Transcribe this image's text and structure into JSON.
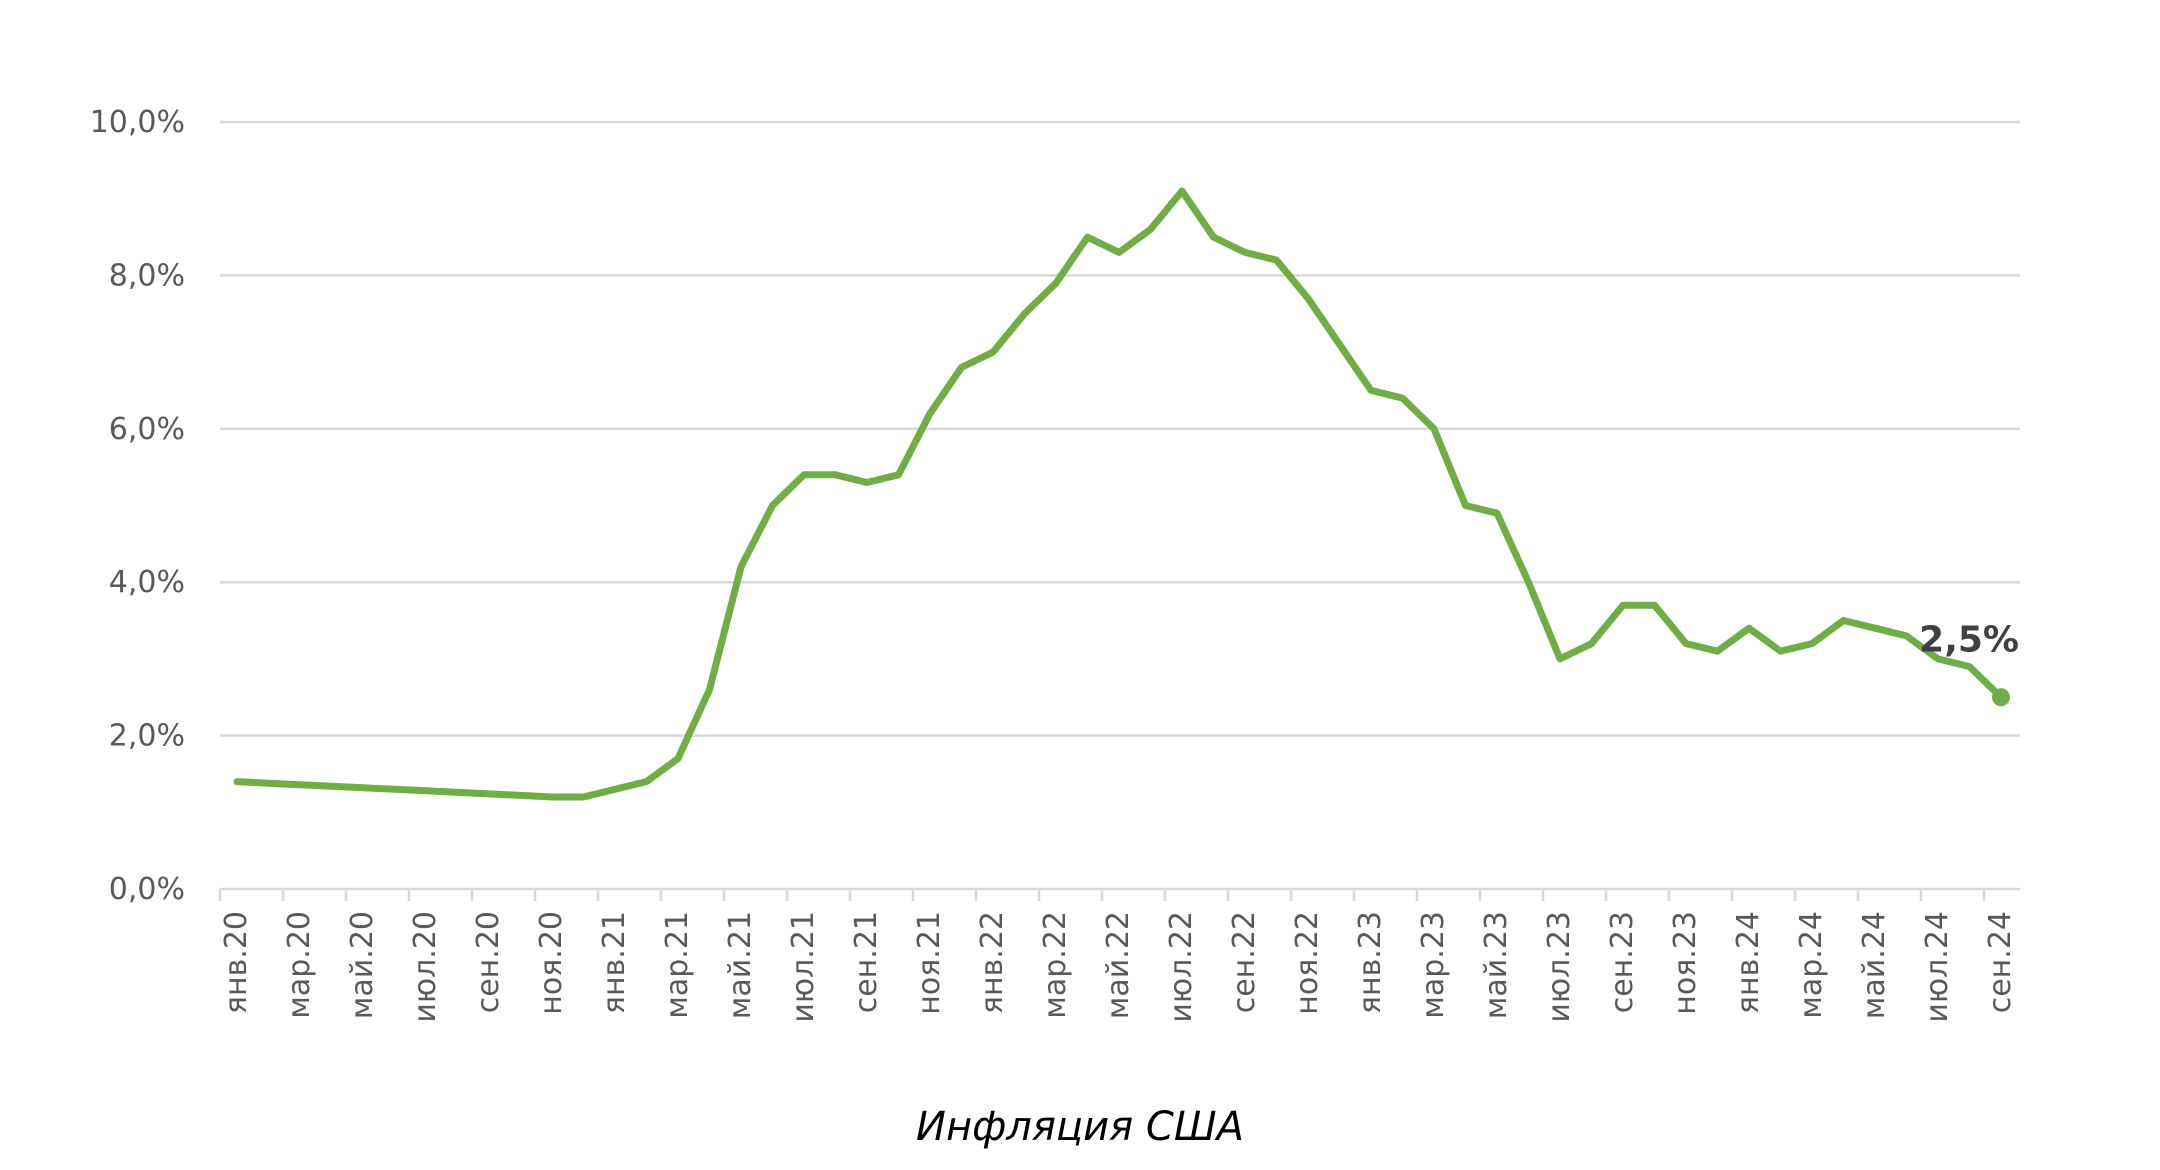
{
  "chart_data": {
    "type": "line",
    "title": "Инфляция США",
    "xlabel": "",
    "ylabel": "",
    "ylim": [
      0,
      10
    ],
    "y_ticks": [
      "0,0%",
      "2,0%",
      "4,0%",
      "6,0%",
      "8,0%",
      "10,0%"
    ],
    "y_tick_values": [
      0,
      2,
      4,
      6,
      8,
      10
    ],
    "grid": true,
    "legend": "none",
    "x_tick_labels": [
      "янв.20",
      "мар.20",
      "май.20",
      "июл.20",
      "сен.20",
      "ноя.20",
      "янв.21",
      "мар.21",
      "май.21",
      "июл.21",
      "сен.21",
      "ноя.21",
      "янв.22",
      "мар.22",
      "май.22",
      "июл.22",
      "сен.22",
      "ноя.22",
      "янв.23",
      "мар.23",
      "май.23",
      "июл.23",
      "сен.23",
      "ноя.23",
      "янв.24",
      "мар.24",
      "май.24",
      "июл.24",
      "сен.24"
    ],
    "series": [
      {
        "color": "#70ad47",
        "x": [
          "янв.20",
          "фев.20",
          "мар.20",
          "апр.20",
          "май.20",
          "июн.20",
          "июл.20",
          "авг.20",
          "сен.20",
          "окт.20",
          "ноя.20",
          "дек.20",
          "янв.21",
          "фев.21",
          "мар.21",
          "апр.21",
          "май.21",
          "июн.21",
          "июл.21",
          "авг.21",
          "сен.21",
          "окт.21",
          "ноя.21",
          "дек.21",
          "янв.22",
          "фев.22",
          "мар.22",
          "апр.22",
          "май.22",
          "июн.22",
          "июл.22",
          "авг.22",
          "сен.22",
          "окт.22",
          "ноя.22",
          "дек.22",
          "янв.23",
          "фев.23",
          "мар.23",
          "апр.23",
          "май.23",
          "июн.23",
          "июл.23",
          "авг.23",
          "сен.23",
          "окт.23",
          "ноя.23",
          "дек.23",
          "янв.24",
          "фев.24",
          "мар.24",
          "апр.24",
          "май.24",
          "июн.24",
          "июл.24",
          "авг.24",
          "сен.24"
        ],
        "values": [
          1.4,
          1.38,
          1.36,
          1.34,
          1.32,
          1.3,
          1.28,
          1.26,
          1.24,
          1.22,
          1.2,
          1.2,
          1.3,
          1.4,
          1.7,
          2.6,
          4.2,
          5.0,
          5.4,
          5.4,
          5.3,
          5.4,
          6.2,
          6.8,
          7.0,
          7.5,
          7.9,
          8.5,
          8.3,
          8.6,
          9.1,
          8.5,
          8.3,
          8.2,
          7.7,
          7.1,
          6.5,
          6.4,
          6.0,
          5.0,
          4.9,
          4.0,
          3.0,
          3.2,
          3.7,
          3.7,
          3.2,
          3.1,
          3.4,
          3.1,
          3.2,
          3.5,
          3.4,
          3.3,
          3.0,
          2.9,
          2.5
        ]
      }
    ],
    "annotations": [
      {
        "text": "2,5%",
        "x": "сен.24",
        "y": 2.5
      }
    ]
  }
}
